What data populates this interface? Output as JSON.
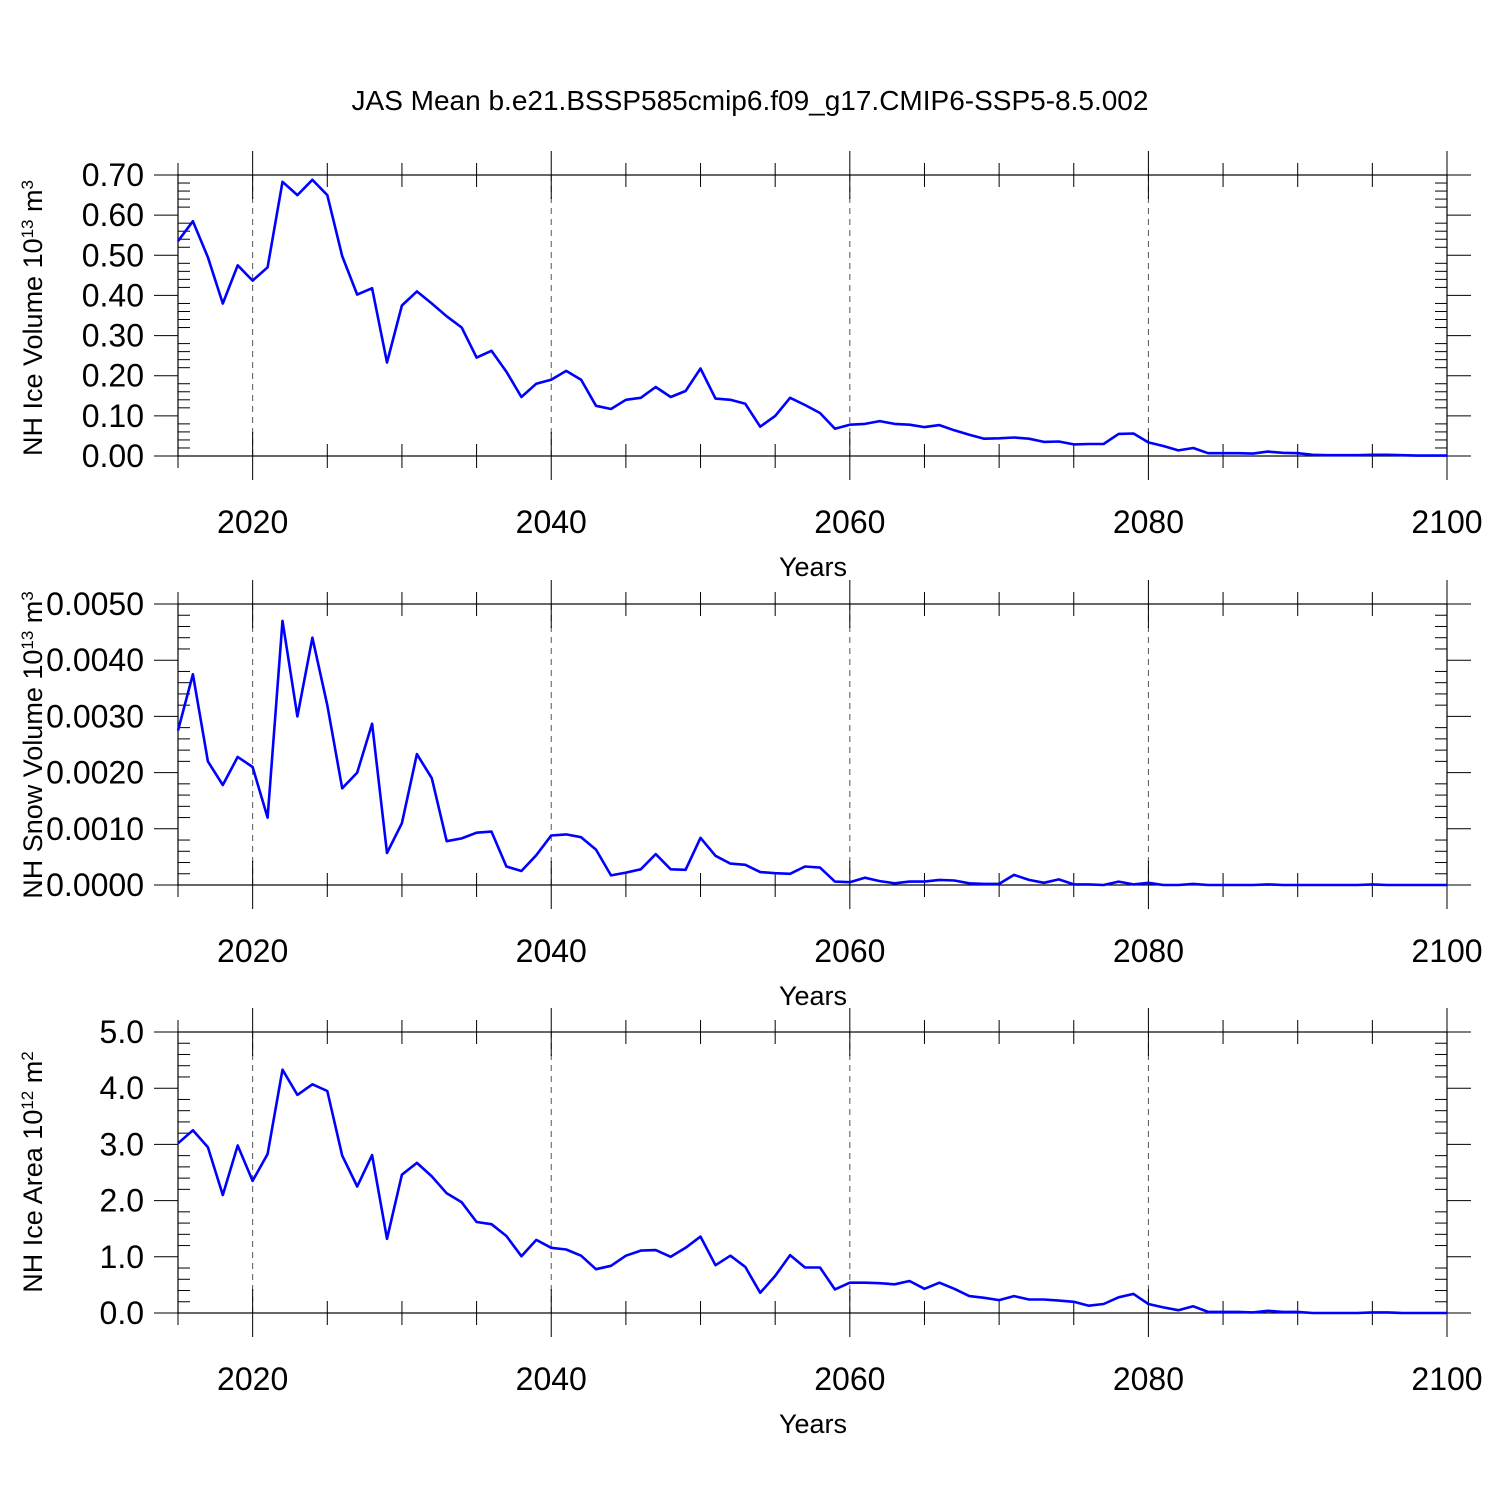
{
  "figure_title": "JAS Mean b.e21.BSSP585cmip6.f09_g17.CMIP6-SSP5-8.5.002",
  "colors": {
    "line": "#0000ff",
    "axes": "#000000",
    "grid": "#555555",
    "background": "#ffffff"
  },
  "chart_data": [
    {
      "type": "line",
      "name": "nh-ice-volume",
      "title": "",
      "xlabel": "Years",
      "ylabel": "NH Ice Volume 10",
      "ylabel_sup": "13",
      "ylabel_unit": "m",
      "ylabel_unit_sup": "3",
      "xlim": [
        2015,
        2100
      ],
      "ylim": [
        0,
        0.7
      ],
      "xticks": [
        2020,
        2040,
        2060,
        2080,
        2100
      ],
      "xtick_labels": [
        "2020",
        "2040",
        "2060",
        "2080",
        "2100"
      ],
      "yticks": [
        0,
        0.1,
        0.2,
        0.3,
        0.4,
        0.5,
        0.6,
        0.7
      ],
      "ytick_labels": [
        "0.00",
        "0.10",
        "0.20",
        "0.30",
        "0.40",
        "0.50",
        "0.60",
        "0.70"
      ],
      "grid_x": true,
      "series": [
        {
          "name": "NH Ice Volume",
          "x_start": 2015,
          "values": [
            0.535,
            0.585,
            0.495,
            0.38,
            0.475,
            0.437,
            0.47,
            0.683,
            0.65,
            0.688,
            0.65,
            0.498,
            0.402,
            0.418,
            0.233,
            0.375,
            0.41,
            0.38,
            0.348,
            0.32,
            0.245,
            0.262,
            0.21,
            0.147,
            0.18,
            0.19,
            0.212,
            0.19,
            0.125,
            0.117,
            0.14,
            0.145,
            0.172,
            0.147,
            0.162,
            0.218,
            0.143,
            0.14,
            0.13,
            0.073,
            0.1,
            0.145,
            0.127,
            0.107,
            0.068,
            0.078,
            0.08,
            0.087,
            0.08,
            0.078,
            0.072,
            0.077,
            0.064,
            0.053,
            0.043,
            0.044,
            0.046,
            0.043,
            0.035,
            0.036,
            0.029,
            0.03,
            0.03,
            0.055,
            0.056,
            0.034,
            0.025,
            0.014,
            0.02,
            0.007,
            0.007,
            0.007,
            0.006,
            0.011,
            0.008,
            0.007,
            0.003,
            0.002,
            0.002,
            0.002,
            0.003,
            0.003,
            0.002,
            0.001,
            0.001,
            0.001
          ]
        }
      ]
    },
    {
      "type": "line",
      "name": "nh-snow-volume",
      "title": "",
      "xlabel": "Years",
      "ylabel": "NH Snow Volume 10",
      "ylabel_sup": "13",
      "ylabel_unit": "m",
      "ylabel_unit_sup": "3",
      "xlim": [
        2015,
        2100
      ],
      "ylim": [
        0,
        0.005
      ],
      "xticks": [
        2020,
        2040,
        2060,
        2080,
        2100
      ],
      "xtick_labels": [
        "2020",
        "2040",
        "2060",
        "2080",
        "2100"
      ],
      "yticks": [
        0,
        0.001,
        0.002,
        0.003,
        0.004,
        0.005
      ],
      "ytick_labels": [
        "0.0000",
        "0.0010",
        "0.0020",
        "0.0030",
        "0.0040",
        "0.0050"
      ],
      "grid_x": true,
      "series": [
        {
          "name": "NH Snow Volume",
          "x_start": 2015,
          "values": [
            0.00275,
            0.00375,
            0.0022,
            0.00178,
            0.00228,
            0.0021,
            0.0012,
            0.0047,
            0.003,
            0.0044,
            0.0032,
            0.00172,
            0.002,
            0.00287,
            0.00057,
            0.0011,
            0.00233,
            0.0019,
            0.00078,
            0.00083,
            0.00093,
            0.00095,
            0.00033,
            0.00025,
            0.00053,
            0.00088,
            0.0009,
            0.00085,
            0.00063,
            0.00017,
            0.00022,
            0.00028,
            0.00055,
            0.00028,
            0.00027,
            0.00084,
            0.00052,
            0.00038,
            0.00036,
            0.00023,
            0.00021,
            0.0002,
            0.00033,
            0.00031,
            6e-05,
            5e-05,
            0.00013,
            7e-05,
            3e-05,
            6e-05,
            6e-05,
            9e-05,
            8e-05,
            3e-05,
            2e-05,
            2e-05,
            0.00018,
            9e-05,
            4e-05,
            0.0001,
            1e-05,
            1e-05,
            0.0,
            6e-05,
            1e-05,
            4e-05,
            0.0,
            0.0,
            2e-05,
            0.0,
            0.0,
            0.0,
            0.0,
            1e-05,
            0.0,
            0.0,
            0.0,
            0.0,
            0.0,
            0.0,
            1e-05,
            0.0,
            0.0,
            0.0,
            0.0,
            0.0
          ]
        }
      ]
    },
    {
      "type": "line",
      "name": "nh-ice-area",
      "title": "",
      "xlabel": "Years",
      "ylabel": "NH Ice Area 10",
      "ylabel_sup": "12",
      "ylabel_unit": "m",
      "ylabel_unit_sup": "2",
      "xlim": [
        2015,
        2100
      ],
      "ylim": [
        0,
        5
      ],
      "xticks": [
        2020,
        2040,
        2060,
        2080,
        2100
      ],
      "xtick_labels": [
        "2020",
        "2040",
        "2060",
        "2080",
        "2100"
      ],
      "yticks": [
        0,
        1,
        2,
        3,
        4,
        5
      ],
      "ytick_labels": [
        "0.0",
        "1.0",
        "2.0",
        "3.0",
        "4.0",
        "5.0"
      ],
      "grid_x": true,
      "series": [
        {
          "name": "NH Ice Area",
          "x_start": 2015,
          "values": [
            3.02,
            3.25,
            2.95,
            2.1,
            2.98,
            2.35,
            2.83,
            4.33,
            3.88,
            4.07,
            3.95,
            2.8,
            2.25,
            2.81,
            1.32,
            2.46,
            2.67,
            2.43,
            2.13,
            1.97,
            1.62,
            1.58,
            1.37,
            1.01,
            1.3,
            1.16,
            1.13,
            1.02,
            0.78,
            0.84,
            1.02,
            1.11,
            1.12,
            1.0,
            1.16,
            1.36,
            0.85,
            1.02,
            0.82,
            0.36,
            0.66,
            1.03,
            0.81,
            0.81,
            0.42,
            0.54,
            0.54,
            0.53,
            0.51,
            0.57,
            0.43,
            0.54,
            0.43,
            0.3,
            0.27,
            0.23,
            0.3,
            0.24,
            0.24,
            0.22,
            0.2,
            0.13,
            0.16,
            0.28,
            0.34,
            0.16,
            0.1,
            0.05,
            0.12,
            0.02,
            0.02,
            0.02,
            0.01,
            0.04,
            0.02,
            0.02,
            0.0,
            0.0,
            0.0,
            0.0,
            0.01,
            0.01,
            0.0,
            0.0,
            0.0,
            0.0
          ]
        }
      ]
    }
  ]
}
